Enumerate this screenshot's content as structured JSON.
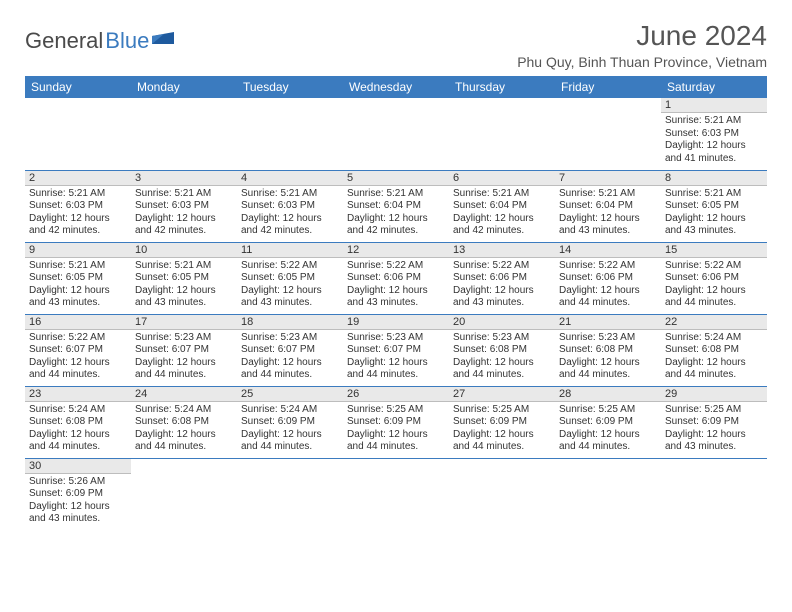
{
  "logo": {
    "text1": "General",
    "text2": "Blue"
  },
  "title": "June 2024",
  "location": "Phu Quy, Binh Thuan Province, Vietnam",
  "colors": {
    "header_bg": "#3b7bbf",
    "header_text": "#ffffff",
    "day_band_bg": "#e9e9e9",
    "row_border": "#3b7bbf",
    "text": "#333333",
    "logo_dark": "#4a4a4a",
    "logo_blue": "#3b7bbf"
  },
  "weekdays": [
    "Sunday",
    "Monday",
    "Tuesday",
    "Wednesday",
    "Thursday",
    "Friday",
    "Saturday"
  ],
  "weeks": [
    [
      null,
      null,
      null,
      null,
      null,
      null,
      {
        "n": "1",
        "l1": "Sunrise: 5:21 AM",
        "l2": "Sunset: 6:03 PM",
        "l3": "Daylight: 12 hours",
        "l4": "and 41 minutes."
      }
    ],
    [
      {
        "n": "2",
        "l1": "Sunrise: 5:21 AM",
        "l2": "Sunset: 6:03 PM",
        "l3": "Daylight: 12 hours",
        "l4": "and 42 minutes."
      },
      {
        "n": "3",
        "l1": "Sunrise: 5:21 AM",
        "l2": "Sunset: 6:03 PM",
        "l3": "Daylight: 12 hours",
        "l4": "and 42 minutes."
      },
      {
        "n": "4",
        "l1": "Sunrise: 5:21 AM",
        "l2": "Sunset: 6:03 PM",
        "l3": "Daylight: 12 hours",
        "l4": "and 42 minutes."
      },
      {
        "n": "5",
        "l1": "Sunrise: 5:21 AM",
        "l2": "Sunset: 6:04 PM",
        "l3": "Daylight: 12 hours",
        "l4": "and 42 minutes."
      },
      {
        "n": "6",
        "l1": "Sunrise: 5:21 AM",
        "l2": "Sunset: 6:04 PM",
        "l3": "Daylight: 12 hours",
        "l4": "and 42 minutes."
      },
      {
        "n": "7",
        "l1": "Sunrise: 5:21 AM",
        "l2": "Sunset: 6:04 PM",
        "l3": "Daylight: 12 hours",
        "l4": "and 43 minutes."
      },
      {
        "n": "8",
        "l1": "Sunrise: 5:21 AM",
        "l2": "Sunset: 6:05 PM",
        "l3": "Daylight: 12 hours",
        "l4": "and 43 minutes."
      }
    ],
    [
      {
        "n": "9",
        "l1": "Sunrise: 5:21 AM",
        "l2": "Sunset: 6:05 PM",
        "l3": "Daylight: 12 hours",
        "l4": "and 43 minutes."
      },
      {
        "n": "10",
        "l1": "Sunrise: 5:21 AM",
        "l2": "Sunset: 6:05 PM",
        "l3": "Daylight: 12 hours",
        "l4": "and 43 minutes."
      },
      {
        "n": "11",
        "l1": "Sunrise: 5:22 AM",
        "l2": "Sunset: 6:05 PM",
        "l3": "Daylight: 12 hours",
        "l4": "and 43 minutes."
      },
      {
        "n": "12",
        "l1": "Sunrise: 5:22 AM",
        "l2": "Sunset: 6:06 PM",
        "l3": "Daylight: 12 hours",
        "l4": "and 43 minutes."
      },
      {
        "n": "13",
        "l1": "Sunrise: 5:22 AM",
        "l2": "Sunset: 6:06 PM",
        "l3": "Daylight: 12 hours",
        "l4": "and 43 minutes."
      },
      {
        "n": "14",
        "l1": "Sunrise: 5:22 AM",
        "l2": "Sunset: 6:06 PM",
        "l3": "Daylight: 12 hours",
        "l4": "and 44 minutes."
      },
      {
        "n": "15",
        "l1": "Sunrise: 5:22 AM",
        "l2": "Sunset: 6:06 PM",
        "l3": "Daylight: 12 hours",
        "l4": "and 44 minutes."
      }
    ],
    [
      {
        "n": "16",
        "l1": "Sunrise: 5:22 AM",
        "l2": "Sunset: 6:07 PM",
        "l3": "Daylight: 12 hours",
        "l4": "and 44 minutes."
      },
      {
        "n": "17",
        "l1": "Sunrise: 5:23 AM",
        "l2": "Sunset: 6:07 PM",
        "l3": "Daylight: 12 hours",
        "l4": "and 44 minutes."
      },
      {
        "n": "18",
        "l1": "Sunrise: 5:23 AM",
        "l2": "Sunset: 6:07 PM",
        "l3": "Daylight: 12 hours",
        "l4": "and 44 minutes."
      },
      {
        "n": "19",
        "l1": "Sunrise: 5:23 AM",
        "l2": "Sunset: 6:07 PM",
        "l3": "Daylight: 12 hours",
        "l4": "and 44 minutes."
      },
      {
        "n": "20",
        "l1": "Sunrise: 5:23 AM",
        "l2": "Sunset: 6:08 PM",
        "l3": "Daylight: 12 hours",
        "l4": "and 44 minutes."
      },
      {
        "n": "21",
        "l1": "Sunrise: 5:23 AM",
        "l2": "Sunset: 6:08 PM",
        "l3": "Daylight: 12 hours",
        "l4": "and 44 minutes."
      },
      {
        "n": "22",
        "l1": "Sunrise: 5:24 AM",
        "l2": "Sunset: 6:08 PM",
        "l3": "Daylight: 12 hours",
        "l4": "and 44 minutes."
      }
    ],
    [
      {
        "n": "23",
        "l1": "Sunrise: 5:24 AM",
        "l2": "Sunset: 6:08 PM",
        "l3": "Daylight: 12 hours",
        "l4": "and 44 minutes."
      },
      {
        "n": "24",
        "l1": "Sunrise: 5:24 AM",
        "l2": "Sunset: 6:08 PM",
        "l3": "Daylight: 12 hours",
        "l4": "and 44 minutes."
      },
      {
        "n": "25",
        "l1": "Sunrise: 5:24 AM",
        "l2": "Sunset: 6:09 PM",
        "l3": "Daylight: 12 hours",
        "l4": "and 44 minutes."
      },
      {
        "n": "26",
        "l1": "Sunrise: 5:25 AM",
        "l2": "Sunset: 6:09 PM",
        "l3": "Daylight: 12 hours",
        "l4": "and 44 minutes."
      },
      {
        "n": "27",
        "l1": "Sunrise: 5:25 AM",
        "l2": "Sunset: 6:09 PM",
        "l3": "Daylight: 12 hours",
        "l4": "and 44 minutes."
      },
      {
        "n": "28",
        "l1": "Sunrise: 5:25 AM",
        "l2": "Sunset: 6:09 PM",
        "l3": "Daylight: 12 hours",
        "l4": "and 44 minutes."
      },
      {
        "n": "29",
        "l1": "Sunrise: 5:25 AM",
        "l2": "Sunset: 6:09 PM",
        "l3": "Daylight: 12 hours",
        "l4": "and 43 minutes."
      }
    ],
    [
      {
        "n": "30",
        "l1": "Sunrise: 5:26 AM",
        "l2": "Sunset: 6:09 PM",
        "l3": "Daylight: 12 hours",
        "l4": "and 43 minutes."
      },
      null,
      null,
      null,
      null,
      null,
      null
    ]
  ]
}
